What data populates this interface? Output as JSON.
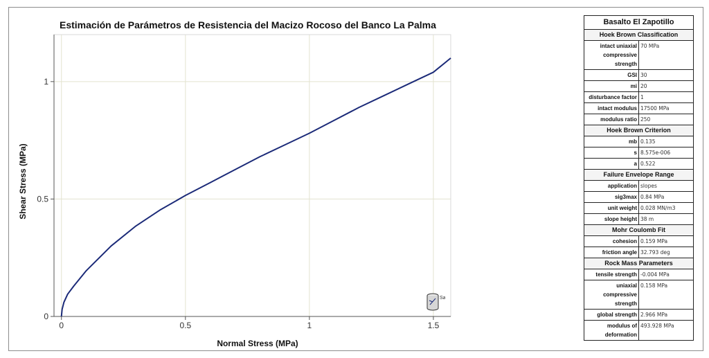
{
  "chart_data": {
    "type": "line",
    "title": "Estimación de Parámetros de Resistencia del Macizo Rocoso del Banco La Palma",
    "xlabel": "Normal Stress (MPa)",
    "ylabel": "Shear Stress (MPa)",
    "xlim": [
      -0.03,
      1.57
    ],
    "ylim": [
      0,
      1.2
    ],
    "xticks": [
      "0",
      "0.5",
      "1",
      "1.5"
    ],
    "yticks": [
      "0",
      "0.5",
      "1"
    ],
    "grid": true,
    "series": [
      {
        "color": "#1b2a78",
        "x": [
          0,
          0.0027,
          0.01,
          0.025,
          0.05,
          0.1,
          0.2,
          0.3,
          0.4,
          0.5,
          0.6,
          0.7,
          0.8,
          0.9,
          1.0,
          1.1,
          1.2,
          1.3,
          1.4,
          1.5,
          1.57
        ],
        "y": [
          0,
          0.03,
          0.06,
          0.095,
          0.13,
          0.195,
          0.3,
          0.385,
          0.455,
          0.515,
          0.57,
          0.625,
          0.68,
          0.73,
          0.78,
          0.835,
          0.89,
          0.94,
          0.99,
          1.04,
          1.1
        ]
      }
    ]
  },
  "info": {
    "title": "Basalto El Zapotillo",
    "sections": [
      {
        "header": "Hoek Brown Classification",
        "rows": [
          {
            "key": "intact uniaxial compressive strength",
            "value": "70 MPa"
          },
          {
            "key": "GSI",
            "value": "30"
          },
          {
            "key": "mi",
            "value": "20"
          },
          {
            "key": "disturbance factor",
            "value": "1"
          },
          {
            "key": "intact modulus",
            "value": "17500 MPa"
          },
          {
            "key": "modulus ratio",
            "value": "250"
          }
        ]
      },
      {
        "header": "Hoek Brown Criterion",
        "rows": [
          {
            "key": "mb",
            "value": "0.135"
          },
          {
            "key": "s",
            "value": "8.575e-006"
          },
          {
            "key": "a",
            "value": "0.522"
          }
        ]
      },
      {
        "header": "Failure Envelope Range",
        "rows": [
          {
            "key": "application",
            "value": "slopes"
          },
          {
            "key": "sig3max",
            "value": "0.84 MPa"
          },
          {
            "key": "unit weight",
            "value": "0.028 MN/m3"
          },
          {
            "key": "slope height",
            "value": "38 m"
          }
        ]
      },
      {
        "header": "Mohr Coulomb Fit",
        "rows": [
          {
            "key": "cohesion",
            "value": "0.159 MPa"
          },
          {
            "key": "friction angle",
            "value": "32.793 deg"
          }
        ]
      },
      {
        "header": "Rock Mass Parameters",
        "rows": [
          {
            "key": "tensile strength",
            "value": "-0.004 MPa"
          },
          {
            "key": "uniaxial compressive strength",
            "value": "0.158 MPa"
          },
          {
            "key": "global strength",
            "value": "2.966 MPa"
          },
          {
            "key": "modulus of deformation",
            "value": "493.928 MPa"
          }
        ]
      }
    ]
  },
  "icon": {
    "name": "sample-cylinder-icon",
    "label": "Sa"
  }
}
